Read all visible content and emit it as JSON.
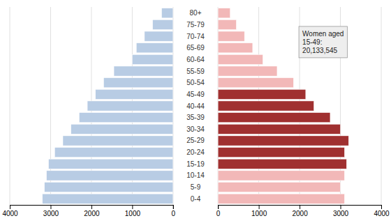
{
  "chart_data": {
    "type": "pyramid",
    "orientation": "horizontal",
    "categories": [
      "0-4",
      "5-9",
      "10-14",
      "15-19",
      "20-24",
      "25-29",
      "30-34",
      "35-39",
      "40-44",
      "45-49",
      "50-54",
      "55-59",
      "60-64",
      "65-69",
      "70-74",
      "75-79",
      "80+"
    ],
    "series": [
      {
        "values": [
          3200,
          3150,
          3100,
          3050,
          2900,
          2700,
          2500,
          2300,
          2100,
          1900,
          1700,
          1450,
          1000,
          900,
          700,
          500,
          280
        ],
        "color": "#b8cce4"
      },
      {
        "values": [
          3100,
          3000,
          3100,
          3150,
          3100,
          3200,
          3000,
          2750,
          2350,
          2150,
          1850,
          1450,
          1100,
          850,
          650,
          450,
          300
        ],
        "colors": [
          "#f2b8b8",
          "#f2b8b8",
          "#f2b8b8",
          "#a03030",
          "#a03030",
          "#a03030",
          "#a03030",
          "#a03030",
          "#a03030",
          "#a03030",
          "#f2b8b8",
          "#f2b8b8",
          "#f2b8b8",
          "#f2b8b8",
          "#f2b8b8",
          "#f2b8b8",
          "#f2b8b8"
        ]
      }
    ],
    "annotations": [
      "Women aged\n15-49:\n20,133,545"
    ],
    "xlim": [
      0,
      4000
    ],
    "xticks": [
      0,
      1000,
      2000,
      3000,
      4000
    ],
    "grid": true
  }
}
